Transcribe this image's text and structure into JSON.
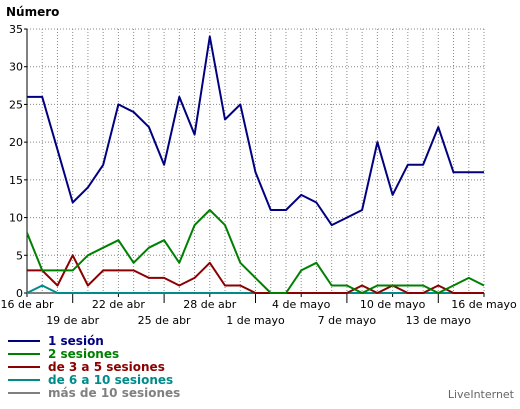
{
  "chart_data": {
    "type": "line",
    "title": "",
    "ylabel": "Número",
    "xlabel": "",
    "ylim": [
      0,
      35
    ],
    "yticks": [
      0,
      5,
      10,
      15,
      20,
      25,
      30,
      35
    ],
    "grid": true,
    "legend_position": "bottom-left",
    "x": [
      "16 abr",
      "17 abr",
      "18 abr",
      "19 abr",
      "20 abr",
      "21 abr",
      "22 abr",
      "23 abr",
      "24 abr",
      "25 abr",
      "26 abr",
      "27 abr",
      "28 abr",
      "29 abr",
      "30 abr",
      "1 may",
      "2 may",
      "3 may",
      "4 may",
      "5 may",
      "6 may",
      "7 may",
      "8 may",
      "9 may",
      "10 may",
      "11 may",
      "12 may",
      "13 may",
      "14 may",
      "15 may",
      "16 may"
    ],
    "xtick_labels": [
      {
        "index": 0,
        "label": "16 de abr",
        "row": 1
      },
      {
        "index": 3,
        "label": "19 de abr",
        "row": 2
      },
      {
        "index": 6,
        "label": "22 de abr",
        "row": 1
      },
      {
        "index": 9,
        "label": "25 de abr",
        "row": 2
      },
      {
        "index": 12,
        "label": "28 de abr",
        "row": 1
      },
      {
        "index": 15,
        "label": "1 de mayo",
        "row": 2
      },
      {
        "index": 18,
        "label": "4 de mayo",
        "row": 1
      },
      {
        "index": 21,
        "label": "7 de mayo",
        "row": 2
      },
      {
        "index": 24,
        "label": "10 de mayo",
        "row": 1
      },
      {
        "index": 27,
        "label": "13 de mayo",
        "row": 2
      },
      {
        "index": 30,
        "label": "16 de mayo",
        "row": 1
      }
    ],
    "series": [
      {
        "name": "1 sesión",
        "color": "#000080",
        "values": [
          26,
          26,
          19,
          12,
          14,
          17,
          25,
          24,
          22,
          17,
          26,
          21,
          34,
          23,
          25,
          16,
          11,
          11,
          13,
          12,
          9,
          10,
          11,
          20,
          13,
          17,
          17,
          22,
          16,
          16,
          16
        ]
      },
      {
        "name": "2 sesiones",
        "color": "#008000",
        "values": [
          8,
          3,
          3,
          3,
          5,
          6,
          7,
          4,
          6,
          7,
          4,
          9,
          11,
          9,
          4,
          2,
          0,
          0,
          3,
          4,
          1,
          1,
          0,
          1,
          1,
          1,
          1,
          0,
          1,
          2,
          1
        ]
      },
      {
        "name": "de 3 a 5 sesiones",
        "color": "#8b0000",
        "values": [
          3,
          3,
          1,
          5,
          1,
          3,
          3,
          3,
          2,
          2,
          1,
          2,
          4,
          1,
          1,
          0,
          0,
          0,
          0,
          0,
          0,
          0,
          1,
          0,
          1,
          0,
          0,
          1,
          0,
          0,
          0
        ]
      },
      {
        "name": "de 6 a 10 sesiones",
        "color": "#008b8b",
        "values": [
          0,
          1,
          0,
          0,
          0,
          0,
          0,
          0,
          0,
          0,
          0,
          0,
          0,
          0,
          0,
          0,
          0,
          0,
          0,
          0,
          0,
          0,
          0,
          0,
          0,
          0,
          0,
          0,
          0,
          0,
          0
        ]
      },
      {
        "name": "más de 10 sesiones",
        "color": "#808080",
        "values": [
          0,
          0,
          0,
          0,
          0,
          0,
          0,
          0,
          0,
          0,
          0,
          0,
          0,
          0,
          0,
          0,
          0,
          0,
          0,
          0,
          0,
          0,
          0,
          0,
          0,
          0,
          0,
          0,
          0,
          0,
          0
        ]
      }
    ]
  },
  "watermark": "LiveInternet"
}
